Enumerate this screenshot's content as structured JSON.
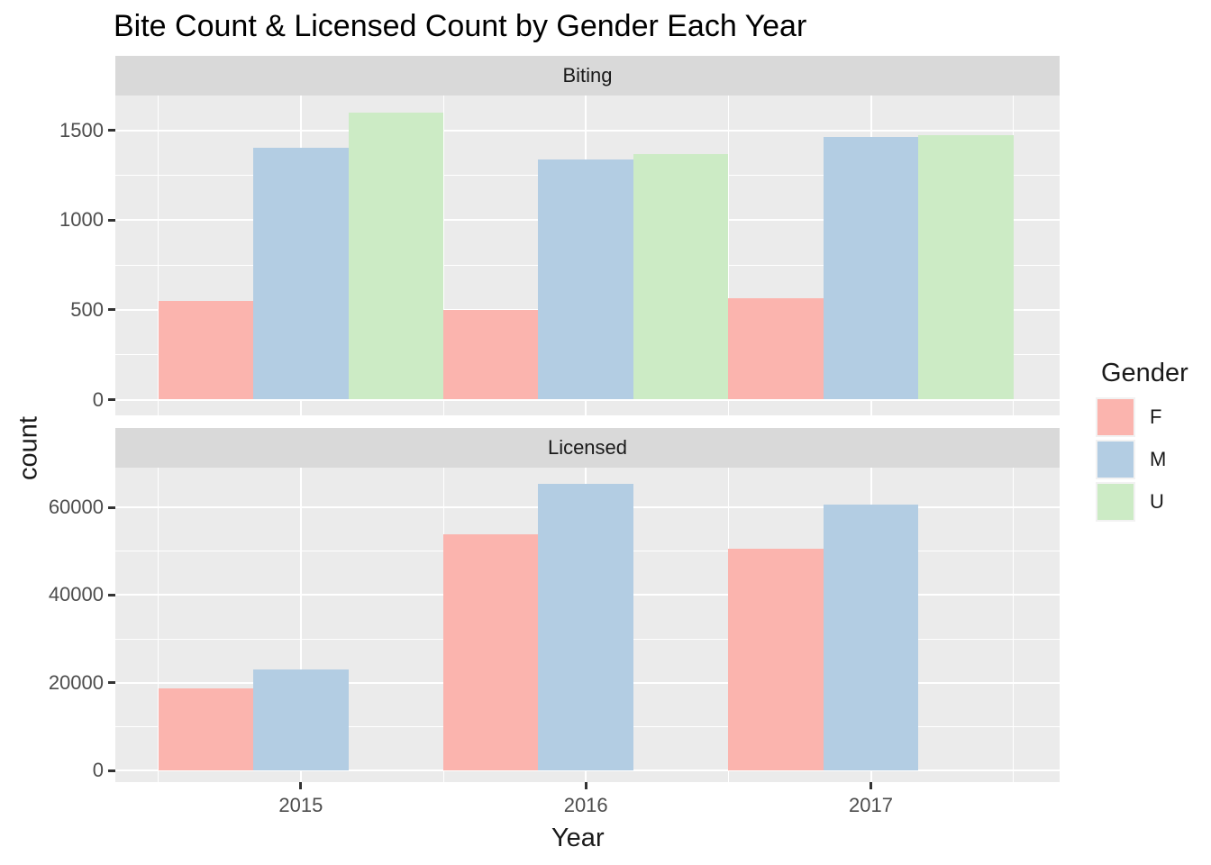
{
  "title": "Bite Count & Licensed Count by Gender Each Year",
  "x_axis": {
    "label": "Year",
    "ticks": [
      "2015",
      "2016",
      "2017"
    ]
  },
  "y_axis": {
    "label": "count"
  },
  "legend": {
    "title": "Gender",
    "entries": [
      {
        "label": "F",
        "color": "#FBB4AE"
      },
      {
        "label": "M",
        "color": "#B3CDE3"
      },
      {
        "label": "U",
        "color": "#CCEBC5"
      }
    ]
  },
  "style": {
    "panel_bg": "#EBEBEB",
    "strip_bg": "#D9D9D9",
    "grid_color": "#FFFFFF",
    "axis_text_color": "#4D4D4D",
    "tick_mark_color": "#333333"
  },
  "chart_data": {
    "type": "bar",
    "title": "Bite Count & Licensed Count by Gender Each Year",
    "xlabel": "Year",
    "ylabel": "count",
    "grid": true,
    "legend_position": "right",
    "legend_title": "Gender",
    "categories": [
      "2015",
      "2016",
      "2017"
    ],
    "facets": [
      {
        "label": "Biting",
        "ylim": [
          0,
          1700
        ],
        "yticks": [
          0,
          500,
          1000,
          1500
        ],
        "yticks_minor": [
          250,
          750,
          1250
        ],
        "series": [
          {
            "name": "F",
            "values": [
              550,
              500,
              565
            ]
          },
          {
            "name": "M",
            "values": [
              1400,
              1335,
              1460
            ]
          },
          {
            "name": "U",
            "values": [
              1600,
              1365,
              1470
            ]
          }
        ]
      },
      {
        "label": "Licensed",
        "ylim": [
          0,
          69000
        ],
        "yticks": [
          0,
          20000,
          40000,
          60000
        ],
        "yticks_minor": [
          10000,
          30000,
          50000
        ],
        "series": [
          {
            "name": "F",
            "values": [
              18700,
              53900,
              50500
            ]
          },
          {
            "name": "M",
            "values": [
              23100,
              65300,
              60600
            ]
          },
          {
            "name": "U",
            "values": [
              0,
              0,
              0
            ]
          }
        ]
      }
    ]
  }
}
